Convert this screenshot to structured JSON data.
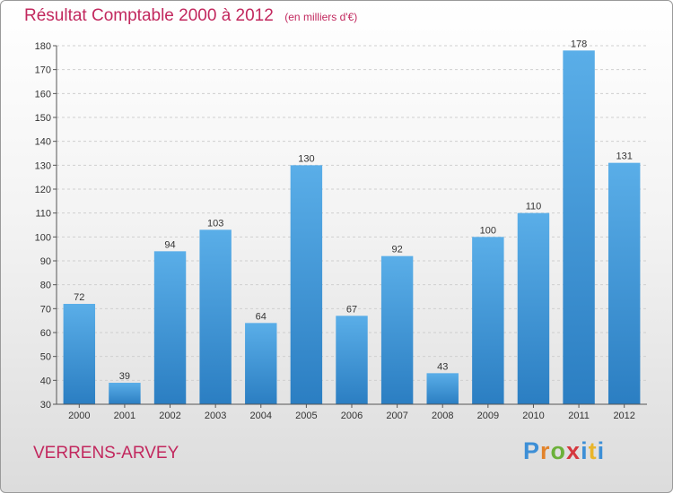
{
  "title": {
    "main": "Résultat Comptable 2000 à 2012",
    "unit": "(en milliers d'€)"
  },
  "commune": "VERRENS-ARVEY",
  "logo": {
    "p": "P",
    "r": "r",
    "o": "o",
    "x": "x",
    "i1": "i",
    "t": "t",
    "i2": "i"
  },
  "colors": {
    "bar_top": "#5aaee8",
    "bar_bottom": "#2b7ec2",
    "title": "#c2285e",
    "grid": "#cfcfcf"
  },
  "chart_data": {
    "type": "bar",
    "title": "Résultat Comptable 2000 à 2012",
    "xlabel": "",
    "ylabel": "",
    "categories": [
      "2000",
      "2001",
      "2002",
      "2003",
      "2004",
      "2005",
      "2006",
      "2007",
      "2008",
      "2009",
      "2010",
      "2011",
      "2012"
    ],
    "values": [
      72,
      39,
      94,
      103,
      64,
      130,
      67,
      92,
      43,
      100,
      110,
      178,
      131
    ],
    "ylim": [
      30,
      180
    ],
    "yticks": [
      30,
      40,
      50,
      60,
      70,
      80,
      90,
      100,
      110,
      120,
      130,
      140,
      150,
      160,
      170,
      180
    ],
    "grid": true,
    "legend": "none"
  }
}
